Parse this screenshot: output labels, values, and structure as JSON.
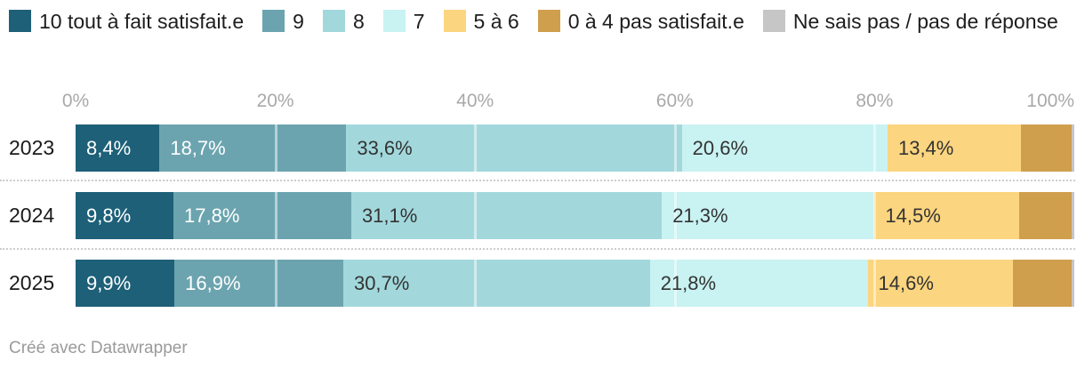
{
  "legend": {
    "items": [
      {
        "label": "10 tout à fait satisfait.e",
        "color": "#1d6078"
      },
      {
        "label": "9",
        "color": "#6ba4af"
      },
      {
        "label": "8",
        "color": "#a2d8dc"
      },
      {
        "label": "7",
        "color": "#c9f2f2"
      },
      {
        "label": "5 à 6",
        "color": "#fbd57f"
      },
      {
        "label": "0 à 4 pas satisfait.e",
        "color": "#cf9f4e"
      },
      {
        "label": "Ne sais pas / pas de réponse",
        "color": "#c6c6c6"
      }
    ]
  },
  "chart_data": {
    "type": "bar",
    "stacked": true,
    "orientation": "horizontal",
    "unit": "%",
    "categories": [
      "2023",
      "2024",
      "2025"
    ],
    "series": [
      {
        "name": "10 tout à fait satisfait.e",
        "color": "#1d6078",
        "label_color": "#ffffff",
        "values": [
          8.4,
          9.8,
          9.9
        ],
        "display_labels": [
          "8,4%",
          "9,8%",
          "9,9%"
        ]
      },
      {
        "name": "9",
        "color": "#6ba4af",
        "label_color": "#ffffff",
        "values": [
          18.7,
          17.8,
          16.9
        ],
        "display_labels": [
          "18,7%",
          "17,8%",
          "16,9%"
        ]
      },
      {
        "name": "8",
        "color": "#a2d8dc",
        "label_color": "#333333",
        "values": [
          33.6,
          31.1,
          30.7
        ],
        "display_labels": [
          "33,6%",
          "31,1%",
          "30,7%"
        ]
      },
      {
        "name": "7",
        "color": "#c9f2f2",
        "label_color": "#333333",
        "values": [
          20.6,
          21.3,
          21.8
        ],
        "display_labels": [
          "20,6%",
          "21,3%",
          "21,8%"
        ]
      },
      {
        "name": "5 à 6",
        "color": "#fbd57f",
        "label_color": "#333333",
        "values": [
          13.4,
          14.5,
          14.6
        ],
        "display_labels": [
          "13,4%",
          "14,5%",
          "14,6%"
        ]
      },
      {
        "name": "0 à 4 pas satisfait.e",
        "color": "#cf9f4e",
        "label_color": "#333333",
        "values": [
          5.0,
          5.2,
          5.8
        ],
        "display_labels": [
          "",
          "",
          ""
        ]
      },
      {
        "name": "Ne sais pas / pas de réponse",
        "color": "#c6c6c6",
        "label_color": "#333333",
        "values": [
          0.3,
          0.3,
          0.3
        ],
        "display_labels": [
          "",
          "",
          ""
        ]
      }
    ],
    "xlim": [
      0,
      100
    ],
    "x_ticks": [
      "0%",
      "20%",
      "40%",
      "60%",
      "80%",
      "100%"
    ],
    "x_tick_positions": [
      0,
      20,
      40,
      60,
      80,
      100
    ],
    "gridline_positions": [
      20,
      40,
      60,
      80
    ],
    "legend_position": "top",
    "grid": "overlay-white"
  },
  "layout": {
    "row_tops": [
      140,
      216,
      292
    ],
    "separator_tops": [
      202,
      279
    ]
  },
  "footer": {
    "credit": "Créé avec Datawrapper"
  }
}
